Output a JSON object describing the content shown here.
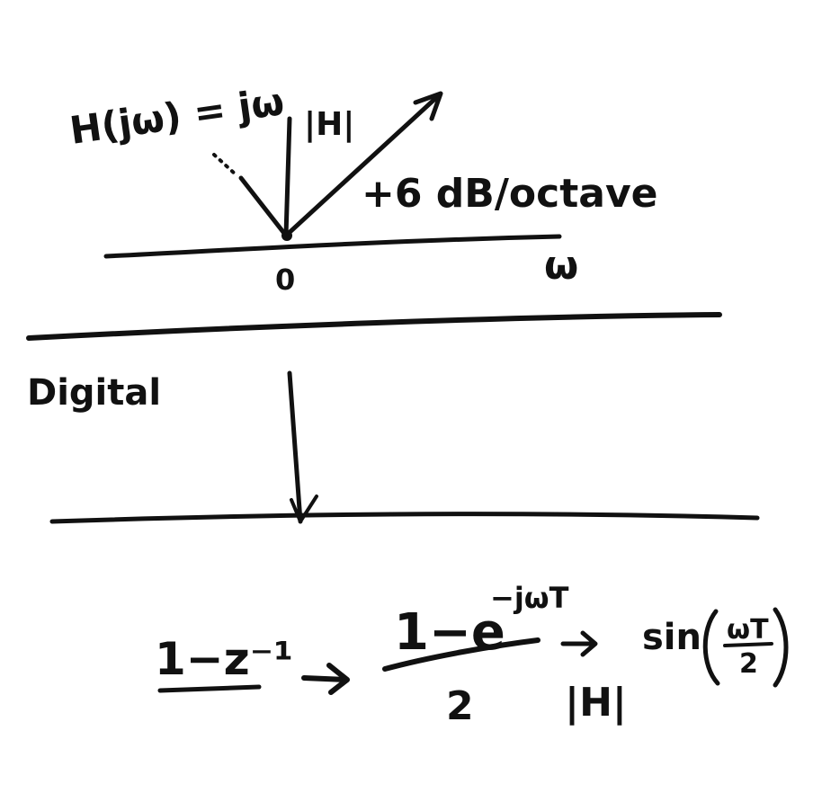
{
  "ink_color": "#111111",
  "background": "#ffffff",
  "analog": {
    "transfer_function": "H(jω) = jω",
    "magnitude_label": "|H|",
    "slope_label": "+6 dB/octave",
    "origin_label": "0",
    "axis_label": "ω"
  },
  "digital": {
    "section_label": "Digital"
  },
  "equation": {
    "numerator_left": "1−z⁻¹",
    "fraction_numerator": "1−e",
    "fraction_exponent": "−jωT",
    "fraction_denominator": "2",
    "magnitude_label": "|H|",
    "result_function": "sin",
    "result_argument_numerator": "ωT",
    "result_argument_denominator": "2"
  }
}
